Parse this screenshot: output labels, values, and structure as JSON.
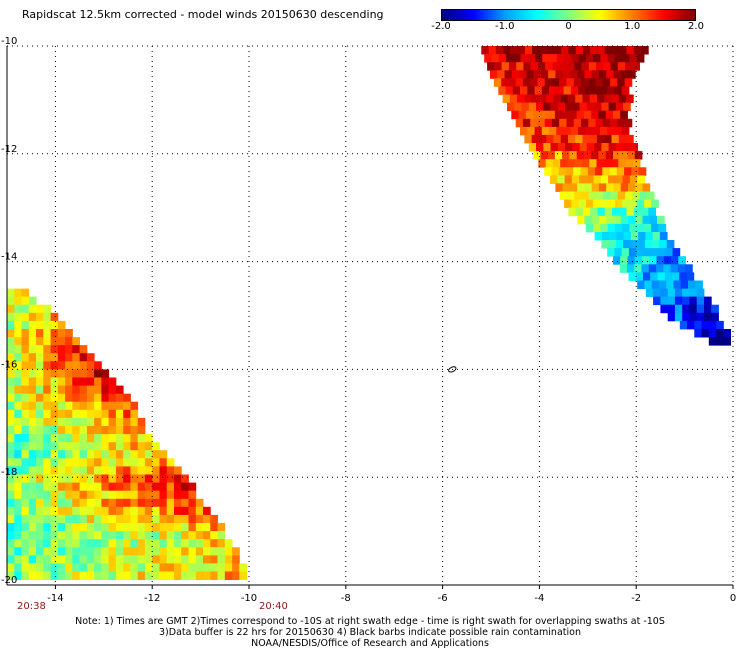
{
  "title": "Rapidscat 12.5km corrected - model winds 20150630 descending",
  "colorbar": {
    "ticks": [
      "-2.0",
      "-1.0",
      "0",
      "1.0",
      "2.0"
    ],
    "tick_values": [
      -2.0,
      -1.0,
      0,
      1.0,
      2.0
    ],
    "range": [
      -2.0,
      2.0
    ],
    "colors": [
      "#000080",
      "#0000ff",
      "#00a0ff",
      "#00ffff",
      "#80ff80",
      "#ffff00",
      "#ff8000",
      "#ff0000",
      "#800000"
    ]
  },
  "notes": [
    "Note: 1) Times are GMT 2)Times correspond to -10S at right swath edge - time is right swath for overlapping swaths at -10S",
    "3)Data buffer is 22 hrs for 20150630 4) Black barbs indicate possible rain contamination",
    "NOAA/NESDIS/Office of Research and Applications"
  ],
  "chart_data": {
    "type": "heatmap",
    "title": "Rapidscat 12.5km corrected - model winds 20150630 descending",
    "xlim": [
      -15,
      0
    ],
    "ylim": [
      -20,
      -10
    ],
    "x_ticks": [
      "-14",
      "-12",
      "-10",
      "-8",
      "-6",
      "-4",
      "-2",
      "0"
    ],
    "x_tick_values": [
      -14,
      -12,
      -10,
      -8,
      -6,
      -4,
      -2,
      0
    ],
    "y_ticks": [
      "-10",
      "-12",
      "-14",
      "-16",
      "-18",
      "-20"
    ],
    "y_tick_values": [
      -10,
      -12,
      -14,
      -16,
      -18,
      -20
    ],
    "grid": true,
    "time_labels": [
      {
        "text": "20:38",
        "x": -15
      },
      {
        "text": "20:40",
        "x": -10
      }
    ],
    "marker": {
      "x": -5.8,
      "y": -16
    },
    "cell_size_deg": 0.15,
    "swaths": [
      {
        "name": "northeast swath",
        "rows": [
          {
            "y": -10.0,
            "x0": -5.2,
            "x1": -1.8,
            "v0": 1.6,
            "v1": 2.0
          },
          {
            "y": -10.5,
            "x0": -5.0,
            "x1": -2.1,
            "v0": 1.5,
            "v1": 1.9
          },
          {
            "y": -11.0,
            "x0": -4.7,
            "x1": -2.2,
            "v0": 1.4,
            "v1": 1.8
          },
          {
            "y": -11.5,
            "x0": -4.4,
            "x1": -2.2,
            "v0": 1.3,
            "v1": 1.6
          },
          {
            "y": -12.0,
            "x0": -4.1,
            "x1": -2.0,
            "v0": 0.9,
            "v1": 1.4
          },
          {
            "y": -12.5,
            "x0": -3.7,
            "x1": -1.8,
            "v0": 0.6,
            "v1": 0.9
          },
          {
            "y": -13.0,
            "x0": -3.4,
            "x1": -1.6,
            "v0": 0.2,
            "v1": -0.3
          },
          {
            "y": -13.5,
            "x0": -2.8,
            "x1": -1.4,
            "v0": -0.3,
            "v1": -0.7
          },
          {
            "y": -14.0,
            "x0": -2.4,
            "x1": -1.0,
            "v0": -0.5,
            "v1": -1.2
          },
          {
            "y": -14.5,
            "x0": -1.8,
            "x1": -0.6,
            "v0": -0.8,
            "v1": -1.5
          },
          {
            "y": -15.0,
            "x0": -1.3,
            "x1": -0.3,
            "v0": -1.3,
            "v1": -1.8
          },
          {
            "y": -15.4,
            "x0": -0.5,
            "x1": 0.0,
            "v0": -1.9,
            "v1": -2.0
          }
        ]
      },
      {
        "name": "southwest swath",
        "rows": [
          {
            "y": -14.5,
            "x0": -15.0,
            "x1": -14.6,
            "v0": 0.3,
            "v1": 0.5
          },
          {
            "y": -15.0,
            "x0": -15.0,
            "x1": -14.0,
            "v0": 0.3,
            "v1": 0.9
          },
          {
            "y": -15.5,
            "x0": -15.0,
            "x1": -13.5,
            "v0": 0.3,
            "v1": 1.5
          },
          {
            "y": -16.0,
            "x0": -15.0,
            "x1": -13.0,
            "v0": 0.2,
            "v1": 1.7
          },
          {
            "y": -16.5,
            "x0": -15.0,
            "x1": -12.5,
            "v0": 0.2,
            "v1": 1.3
          },
          {
            "y": -17.0,
            "x0": -15.0,
            "x1": -12.2,
            "v0": 0.0,
            "v1": 0.9
          },
          {
            "y": -17.5,
            "x0": -15.0,
            "x1": -11.8,
            "v0": -0.2,
            "v1": 0.8
          },
          {
            "y": -18.0,
            "x0": -15.0,
            "x1": -11.3,
            "v0": 0.1,
            "v1": 1.7
          },
          {
            "y": -18.5,
            "x0": -15.0,
            "x1": -10.9,
            "v0": 0.0,
            "v1": 1.3
          },
          {
            "y": -19.0,
            "x0": -15.0,
            "x1": -10.5,
            "v0": -0.2,
            "v1": 0.6
          },
          {
            "y": -19.5,
            "x0": -15.0,
            "x1": -10.2,
            "v0": -0.1,
            "v1": 0.7
          },
          {
            "y": -20.0,
            "x0": -15.0,
            "x1": -9.9,
            "v0": 0.1,
            "v1": 1.0
          }
        ]
      }
    ]
  }
}
